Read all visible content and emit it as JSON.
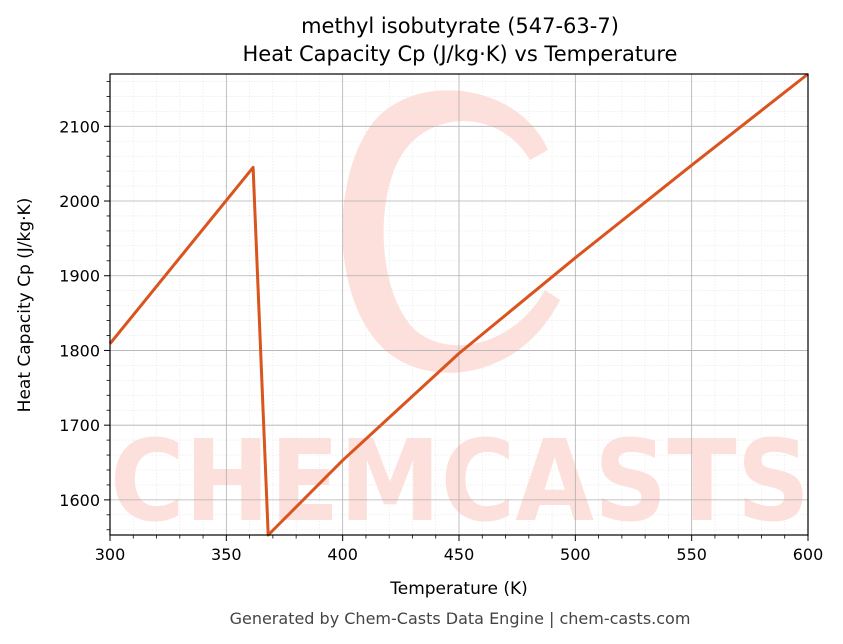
{
  "chart_data": {
    "type": "line",
    "title": "methyl isobutyrate (547-63-7)",
    "subtitle": "Heat Capacity Cp (J/kg·K) vs Temperature",
    "xlabel": "Temperature (K)",
    "ylabel": "Heat Capacity Cp (J/kg·K)",
    "xlim": [
      300,
      600
    ],
    "ylim": [
      1553,
      2170
    ],
    "xticks": [
      300,
      350,
      400,
      450,
      500,
      550,
      600
    ],
    "yticks": [
      1600,
      1700,
      1800,
      1900,
      2000,
      2100
    ],
    "grid": true,
    "color": "#d9541e",
    "series": [
      {
        "x": [
          300,
          361.5,
          368,
          400,
          450,
          500,
          550,
          600
        ],
        "values": [
          1809,
          2045,
          1553,
          1653,
          1796,
          1924,
          2048,
          2170
        ]
      }
    ]
  },
  "watermark": {
    "text": "CHEMCASTS"
  },
  "footer": "Generated by Chem-Casts Data Engine | chem-casts.com"
}
